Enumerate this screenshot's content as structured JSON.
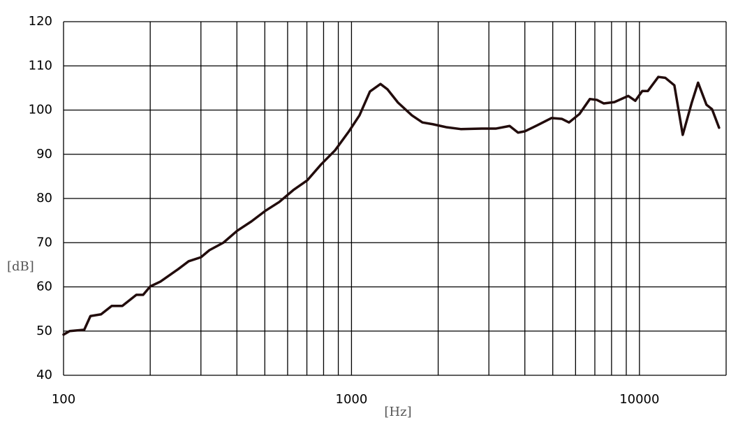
{
  "chart_data": {
    "type": "line",
    "xscale": "log",
    "grid": true,
    "xlabel": "[Hz]",
    "ylabel": "[dB]",
    "xlim": [
      100,
      20000
    ],
    "ylim": [
      40,
      120
    ],
    "xticks": [
      100,
      1000,
      10000
    ],
    "xgrid_minor": [
      200,
      300,
      400,
      500,
      600,
      700,
      800,
      900,
      2000,
      3000,
      4000,
      5000,
      6000,
      7000,
      8000,
      9000
    ],
    "yticks": [
      40,
      50,
      60,
      70,
      80,
      90,
      100,
      110,
      120
    ],
    "x": [
      100,
      105,
      118,
      124,
      135,
      147,
      160,
      179,
      189,
      200,
      217,
      250,
      272,
      300,
      321,
      359,
      401,
      449,
      502,
      561,
      628,
      702,
      784,
      877,
      980,
      1066,
      1159,
      1261,
      1333,
      1450,
      1621,
      1763,
      1916,
      2143,
      2395,
      2833,
      3168,
      3541,
      3787,
      4004,
      4427,
      4949,
      5382,
      5692,
      6187,
      6729,
      7114,
      7522,
      8180,
      9146,
      9671,
      10226,
      10693,
      11629,
      12293,
      13221,
      14137,
      15197,
      15980,
      17090,
      17870,
      18900
    ],
    "series": [
      {
        "color": "#220c0c",
        "values": [
          49.2,
          50.0,
          50.3,
          53.4,
          53.8,
          55.7,
          55.7,
          58.2,
          58.2,
          60.1,
          61.2,
          64.0,
          65.8,
          66.7,
          68.3,
          70.0,
          72.7,
          74.8,
          77.2,
          79.2,
          81.9,
          84.1,
          87.7,
          90.9,
          95.2,
          98.8,
          104.2,
          105.9,
          104.7,
          101.7,
          98.8,
          97.2,
          96.8,
          96.1,
          95.7,
          95.8,
          95.8,
          96.4,
          94.9,
          95.2,
          96.6,
          98.2,
          98.0,
          97.2,
          99.1,
          102.5,
          102.3,
          101.5,
          101.8,
          103.2,
          102.1,
          104.3,
          104.3,
          107.5,
          107.3,
          105.6,
          94.4,
          101.7,
          106.2,
          101.2,
          100.2,
          96.0
        ]
      }
    ]
  }
}
